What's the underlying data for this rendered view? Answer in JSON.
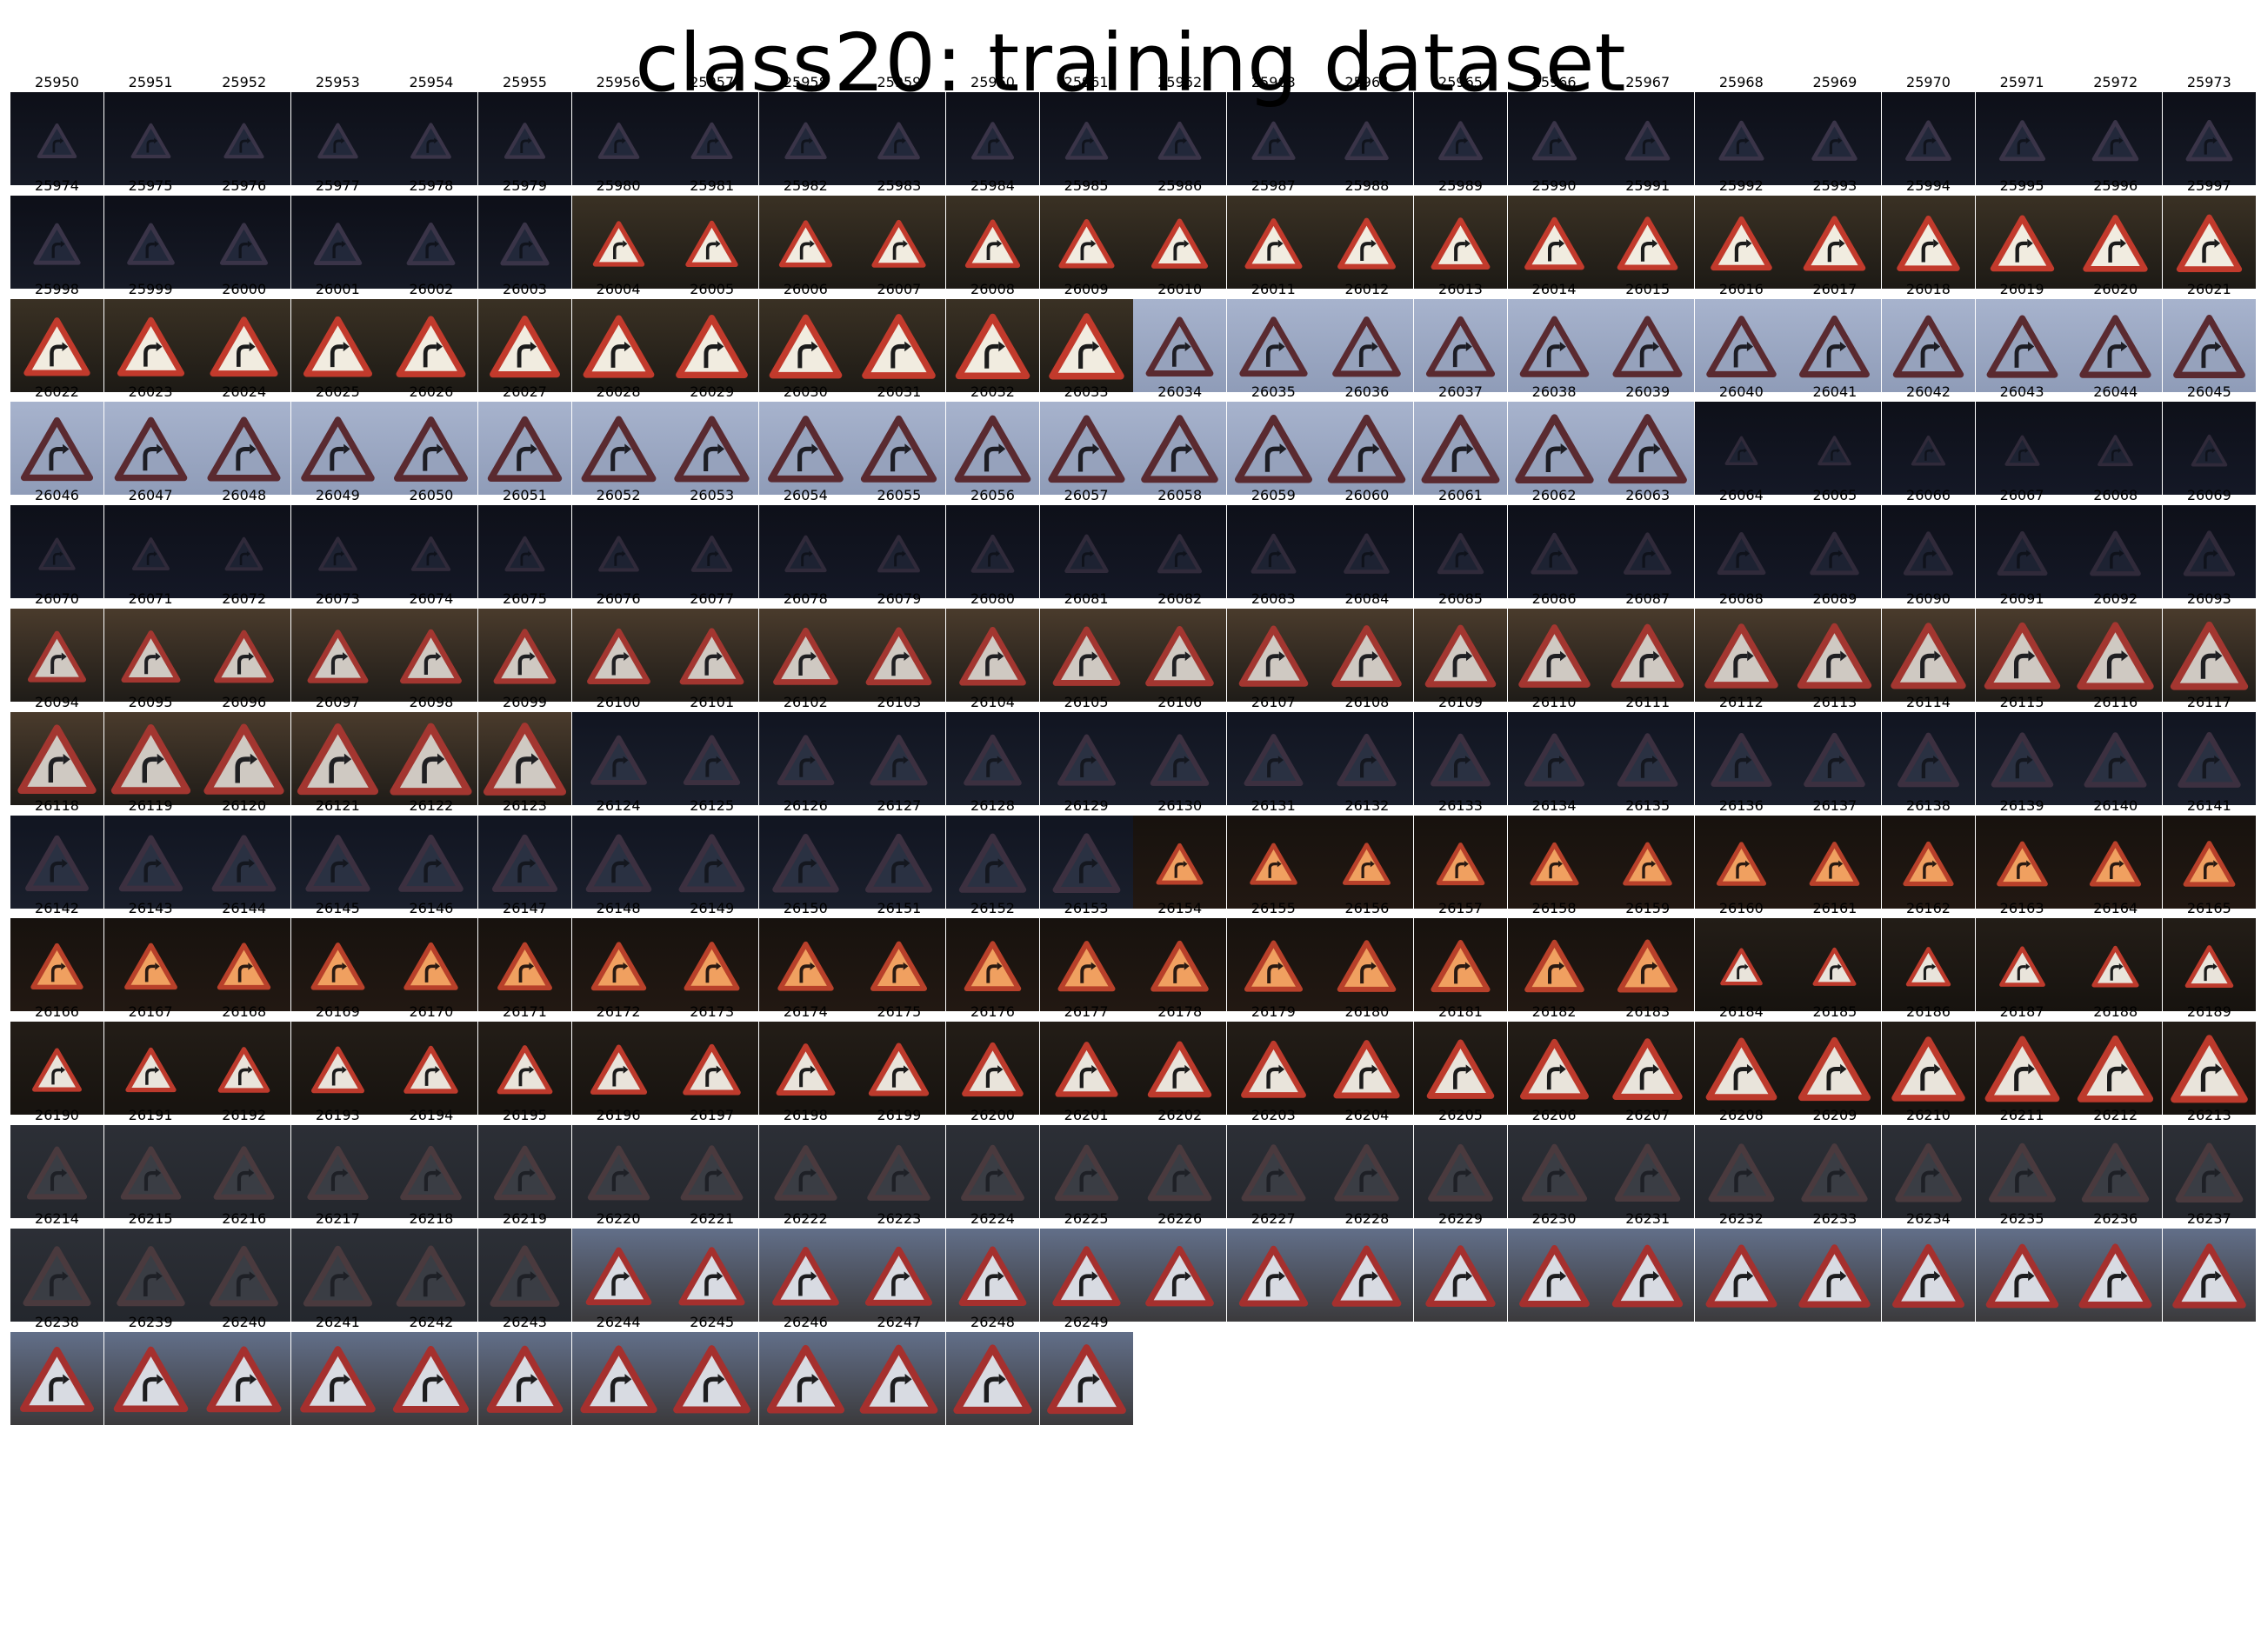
{
  "title": "class20: training dataset",
  "first_id": 25950,
  "last_id": 26249,
  "columns": 24,
  "sign_icon_name": "right-curve-warning-sign-icon",
  "colors": {
    "sign_border": "#b8302a",
    "sign_arrow": "#1c1c1c",
    "background": "#ffffff",
    "text": "#000000"
  },
  "groups": [
    {
      "from": 25950,
      "to": 25979,
      "bg": "#0d0f18",
      "bg2": "#161a26",
      "fill": "#22283a",
      "border": "#3a3448",
      "arrow": "#10131c",
      "scale_from": 0.42,
      "scale_to": 0.52
    },
    {
      "from": 25980,
      "to": 26009,
      "bg": "#3a3124",
      "bg2": "#1d1a15",
      "fill": "#f1ece0",
      "border": "#c23a2c",
      "arrow": "#1b1b1b",
      "scale_from": 0.55,
      "scale_to": 0.8
    },
    {
      "from": 26010,
      "to": 26039,
      "bg": "#a7b3cd",
      "bg2": "#8f9cb8",
      "fill": "#96a2bc",
      "border": "#5a2a30",
      "arrow": "#1d1d24",
      "scale_from": 0.72,
      "scale_to": 0.84
    },
    {
      "from": 26040,
      "to": 26069,
      "bg": "#0e1019",
      "bg2": "#141826",
      "fill": "#1d2232",
      "border": "#302a3a",
      "arrow": "#0f121b",
      "scale_from": 0.35,
      "scale_to": 0.55
    },
    {
      "from": 26070,
      "to": 26099,
      "bg": "#4a3b2c",
      "bg2": "#1f1c18",
      "fill": "#cfc9c2",
      "border": "#a33630",
      "arrow": "#1f1f22",
      "scale_from": 0.62,
      "scale_to": 0.88
    },
    {
      "from": 26100,
      "to": 26129,
      "bg": "#111521",
      "bg2": "#1a1f2c",
      "fill": "#2a3142",
      "border": "#3c3040",
      "arrow": "#14171f",
      "scale_from": 0.6,
      "scale_to": 0.72
    },
    {
      "from": 26130,
      "to": 26159,
      "bg": "#17120e",
      "bg2": "#221812",
      "fill": "#f0a060",
      "border": "#b8402a",
      "arrow": "#2a1a12",
      "scale_from": 0.5,
      "scale_to": 0.64
    },
    {
      "from": 26160,
      "to": 26189,
      "bg": "#231d17",
      "bg2": "#17130f",
      "fill": "#e9e4db",
      "border": "#bd3a2c",
      "arrow": "#1b1b1b",
      "scale_from": 0.45,
      "scale_to": 0.82
    },
    {
      "from": 26190,
      "to": 26219,
      "bg": "#2c2f36",
      "bg2": "#24272d",
      "fill": "#3a3d44",
      "border": "#4a3a3e",
      "arrow": "#1e2026",
      "scale_from": 0.64,
      "scale_to": 0.74
    },
    {
      "from": 26220,
      "to": 26249,
      "bg": "#626f89",
      "bg2": "#3b3a3c",
      "fill": "#d8dbe2",
      "border": "#a5302e",
      "arrow": "#1c1c1e",
      "scale_from": 0.7,
      "scale_to": 0.84
    }
  ]
}
